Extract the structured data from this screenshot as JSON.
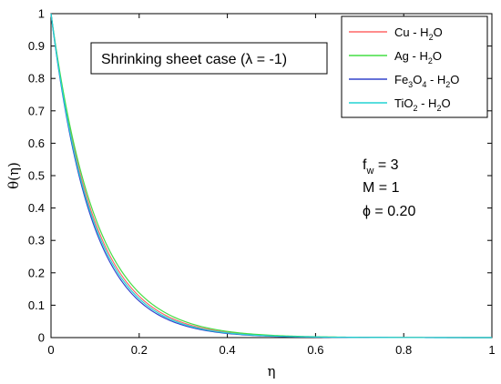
{
  "chart_data": {
    "type": "line",
    "xlabel": "η",
    "ylabel": "θ(η)",
    "xlim": [
      0,
      1
    ],
    "ylim": [
      0,
      1
    ],
    "xticks": [
      "0",
      "0.2",
      "0.4",
      "0.6",
      "0.8",
      "1"
    ],
    "yticks": [
      "0",
      "0.1",
      "0.2",
      "0.3",
      "0.4",
      "0.5",
      "0.6",
      "0.7",
      "0.8",
      "0.9",
      "1"
    ],
    "grid": false,
    "legend_position": "top-right",
    "annotation": {
      "text": "Shrinking sheet case (λ = -1)"
    },
    "parameters": {
      "fw": {
        "symbol": "f",
        "sub": "w",
        "value": " = 3"
      },
      "M": {
        "text": "M = 1"
      },
      "phi": {
        "text": "ϕ = 0.20"
      }
    },
    "series": [
      {
        "name": "Cu - H2O",
        "legend_parts": [
          [
            "Cu - H",
            ""
          ],
          [
            "2",
            "sub"
          ],
          [
            "O",
            ""
          ]
        ],
        "color": "#ff6666",
        "decay": 10.3,
        "x": [
          0,
          0.05,
          0.1,
          0.15,
          0.2,
          0.25,
          0.3,
          0.35,
          0.4,
          0.5,
          0.6,
          0.7,
          0.8
        ],
        "y": [
          1,
          0.598,
          0.357,
          0.213,
          0.127,
          0.076,
          0.045,
          0.027,
          0.016,
          0.006,
          0.002,
          0.001,
          0.0
        ]
      },
      {
        "name": "Ag - H2O",
        "legend_parts": [
          [
            "Ag - H",
            ""
          ],
          [
            "2",
            "sub"
          ],
          [
            "O",
            ""
          ]
        ],
        "color": "#44dd44",
        "decay": 9.9,
        "x": [
          0,
          0.05,
          0.1,
          0.15,
          0.2,
          0.25,
          0.3,
          0.35,
          0.4,
          0.5,
          0.6,
          0.7,
          0.8
        ],
        "y": [
          1,
          0.61,
          0.372,
          0.227,
          0.138,
          0.084,
          0.051,
          0.031,
          0.019,
          0.007,
          0.003,
          0.001,
          0.0
        ]
      },
      {
        "name": "Fe3O4 - H2O",
        "legend_parts": [
          [
            "Fe",
            ""
          ],
          [
            "3",
            "sub"
          ],
          [
            "O",
            ""
          ],
          [
            "4",
            "sub"
          ],
          [
            " - H",
            ""
          ],
          [
            "2",
            "sub"
          ],
          [
            "O",
            ""
          ]
        ],
        "color": "#3344cc",
        "decay": 10.9,
        "x": [
          0,
          0.05,
          0.1,
          0.15,
          0.2,
          0.25,
          0.3,
          0.35,
          0.4,
          0.5,
          0.6,
          0.7,
          0.8
        ],
        "y": [
          1,
          0.58,
          0.336,
          0.195,
          0.113,
          0.066,
          0.038,
          0.022,
          0.013,
          0.004,
          0.001,
          0.0,
          0.0
        ]
      },
      {
        "name": "TiO2 - H2O",
        "legend_parts": [
          [
            "TiO",
            ""
          ],
          [
            "2",
            "sub"
          ],
          [
            " - H",
            ""
          ],
          [
            "2",
            "sub"
          ],
          [
            "O",
            ""
          ]
        ],
        "color": "#22d4d4",
        "decay": 10.6,
        "x": [
          0,
          0.05,
          0.1,
          0.15,
          0.2,
          0.25,
          0.3,
          0.35,
          0.4,
          0.5,
          0.6,
          0.7,
          0.8
        ],
        "y": [
          1,
          0.589,
          0.346,
          0.204,
          0.12,
          0.071,
          0.042,
          0.024,
          0.014,
          0.005,
          0.002,
          0.001,
          0.0
        ]
      }
    ]
  }
}
